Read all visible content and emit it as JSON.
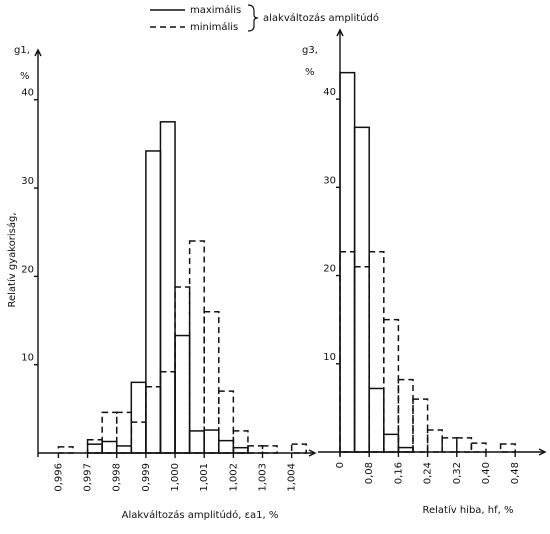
{
  "legend": {
    "label": "alakváltozás amplitúdó"
  },
  "chart_data": [
    {
      "type": "histogram",
      "y_label": "g1,",
      "y_unit": "%",
      "y_title": "Relatív gyakoriság,",
      "x_label": "Alakváltozás amplitúdó, εa1, %",
      "bins": [
        0.996,
        0.9965,
        0.997,
        0.9975,
        0.998,
        0.9985,
        0.999,
        0.9995,
        1.0,
        1.0005,
        1.001,
        1.0015,
        1.002,
        1.0025,
        1.003,
        1.0035,
        1.004,
        1.0045
      ],
      "series": [
        {
          "name": "maximális",
          "color": "#111111",
          "line_style": "solid",
          "values": [
            0,
            0,
            1.0,
            1.3,
            0.8,
            8,
            34.2,
            37.5,
            13.3,
            2.5,
            2.6,
            1.4,
            0.6,
            0,
            0,
            0,
            0
          ]
        },
        {
          "name": "minimális",
          "color": "#111111",
          "line_style": "dashed",
          "values": [
            0.7,
            0,
            1.5,
            4.6,
            4.6,
            3.5,
            7.5,
            9.2,
            18.8,
            24,
            16,
            7,
            2.5,
            0.8,
            0.8,
            0,
            1.0
          ]
        }
      ],
      "xlim": [
        0.9953,
        1.0048
      ],
      "xticks": [
        {
          "value": 0.996,
          "label": "0,996"
        },
        {
          "value": 0.997,
          "label": "0,997"
        },
        {
          "value": 0.998,
          "label": "0,998"
        },
        {
          "value": 0.999,
          "label": "0,999"
        },
        {
          "value": 1.0,
          "label": "1,000"
        },
        {
          "value": 1.001,
          "label": "1,001"
        },
        {
          "value": 1.002,
          "label": "1,002"
        },
        {
          "value": 1.003,
          "label": "1,003"
        },
        {
          "value": 1.004,
          "label": "1,004"
        }
      ],
      "ylim": [
        0,
        44.5
      ],
      "yticks": [
        10,
        20,
        30,
        40
      ]
    },
    {
      "type": "histogram",
      "y_label": "g3,",
      "y_unit": "%",
      "x_label": "Relatív hiba, hf, %",
      "bins": [
        0,
        0.04,
        0.08,
        0.12,
        0.16,
        0.2,
        0.24,
        0.28,
        0.32,
        0.36,
        0.4,
        0.44,
        0.48,
        0.52
      ],
      "series": [
        {
          "color": "#111111",
          "line_style": "solid",
          "values": [
            43,
            36.8,
            7.2,
            2,
            0.5,
            0,
            0,
            0,
            0,
            0,
            0,
            0,
            0
          ]
        },
        {
          "color": "#111111",
          "line_style": "dashed",
          "values": [
            22.7,
            21,
            22.7,
            15,
            8.2,
            6,
            2.5,
            1.6,
            1.6,
            1,
            0,
            0.9,
            0
          ]
        }
      ],
      "xlim": [
        -0.0603,
        0.5617
      ],
      "xticks": [
        0,
        {
          "value": 0.08,
          "label": "0,08"
        },
        {
          "value": 0.16,
          "label": "0,16"
        },
        {
          "value": 0.24,
          "label": "0,24"
        },
        {
          "value": 0.32,
          "label": "0,32"
        },
        {
          "value": 0.4,
          "label": "0,40"
        },
        {
          "value": 0.48,
          "label": "0,48"
        }
      ],
      "ylim": [
        0,
        46.7
      ],
      "yticks": [
        10,
        20,
        30,
        40
      ]
    }
  ]
}
